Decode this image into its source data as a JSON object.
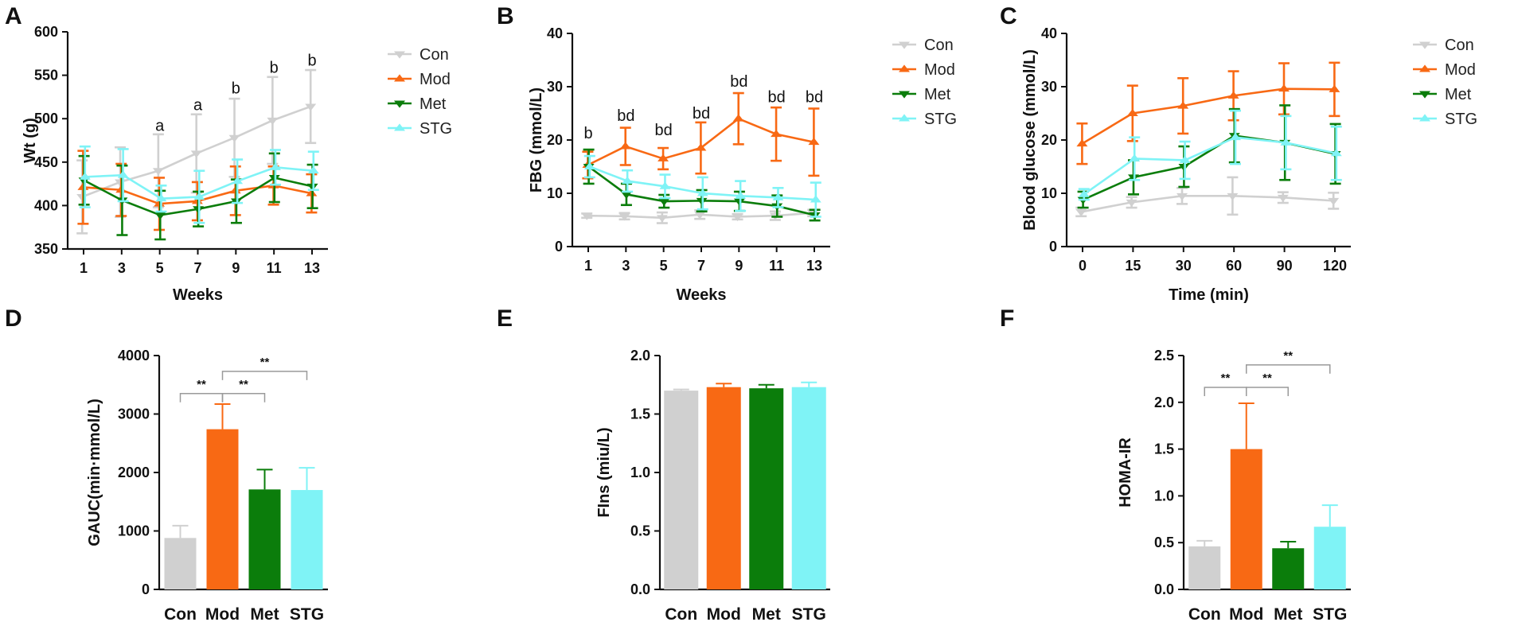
{
  "figure": {
    "colors": {
      "Con": "#d0d0d0",
      "Mod": "#f86914",
      "Met": "#0b7d0b",
      "STG": "#7ff3f6"
    },
    "markers": {
      "Con": "tri-down",
      "Mod": "tri-up",
      "Met": "tri-down",
      "STG": "tri-up"
    },
    "legend_labels": [
      "Con",
      "Mod",
      "Met",
      "STG"
    ]
  },
  "chart_data": [
    {
      "id": "A",
      "letter": "A",
      "type": "line",
      "xlabel": "Weeks",
      "ylabel": "Wt (g)",
      "categories": [
        "1",
        "3",
        "5",
        "7",
        "9",
        "11",
        "13"
      ],
      "ylim": [
        350,
        600
      ],
      "yticks": [
        "350",
        "400",
        "450",
        "500",
        "550",
        "600"
      ],
      "legend": "top-right",
      "series": [
        {
          "name": "Con",
          "values": [
            410,
            427,
            440,
            460,
            478,
            498,
            514
          ],
          "err": [
            42,
            40,
            42,
            45,
            45,
            50,
            42
          ]
        },
        {
          "name": "Mod",
          "values": [
            421,
            418,
            402,
            405,
            417,
            423,
            414
          ],
          "err": [
            42,
            30,
            30,
            22,
            28,
            22,
            22
          ]
        },
        {
          "name": "Met",
          "values": [
            429,
            406,
            389,
            396,
            405,
            432,
            422
          ],
          "err": [
            28,
            40,
            28,
            20,
            25,
            28,
            25
          ]
        },
        {
          "name": "STG",
          "values": [
            433,
            435,
            408,
            410,
            428,
            444,
            440
          ],
          "err": [
            35,
            30,
            15,
            30,
            25,
            20,
            22
          ]
        }
      ],
      "annotations": [
        {
          "text": "a",
          "x": "5",
          "y": 486
        },
        {
          "text": "a",
          "x": "7",
          "y": 510
        },
        {
          "text": "b",
          "x": "9",
          "y": 529
        },
        {
          "text": "b",
          "x": "11",
          "y": 553
        },
        {
          "text": "b",
          "x": "13",
          "y": 561
        }
      ]
    },
    {
      "id": "B",
      "letter": "B",
      "type": "line",
      "xlabel": "Weeks",
      "ylabel": "FBG (mmol/L)",
      "categories": [
        "1",
        "3",
        "5",
        "7",
        "9",
        "11",
        "13"
      ],
      "ylim": [
        0,
        40
      ],
      "yticks": [
        "0",
        "10",
        "20",
        "30",
        "40"
      ],
      "legend": "top-right",
      "series": [
        {
          "name": "Con",
          "values": [
            5.8,
            5.7,
            5.4,
            6.0,
            5.6,
            5.8,
            6.3
          ],
          "err": [
            0.4,
            0.6,
            1.0,
            0.8,
            0.5,
            0.8,
            0.6
          ]
        },
        {
          "name": "Mod",
          "values": [
            15.3,
            18.8,
            16.5,
            18.5,
            24.0,
            21.1,
            19.6
          ],
          "err": [
            2.5,
            3.5,
            2.0,
            4.8,
            4.8,
            5.0,
            6.3
          ]
        },
        {
          "name": "Met",
          "values": [
            15.0,
            9.8,
            8.5,
            8.6,
            8.5,
            7.6,
            5.9
          ],
          "err": [
            3.2,
            2.0,
            1.2,
            2.0,
            1.8,
            2.0,
            1.0
          ]
        },
        {
          "name": "STG",
          "values": [
            15.0,
            12.3,
            11.3,
            10.0,
            9.5,
            9.2,
            8.8
          ],
          "err": [
            2.0,
            2.0,
            2.2,
            3.0,
            2.8,
            1.8,
            3.2
          ]
        }
      ],
      "annotations": [
        {
          "text": "b",
          "x": "1",
          "y": 20.3
        },
        {
          "text": "bd",
          "x": "3",
          "y": 23.6
        },
        {
          "text": "bd",
          "x": "5",
          "y": 20.9
        },
        {
          "text": "bd",
          "x": "7",
          "y": 24.0
        },
        {
          "text": "bd",
          "x": "9",
          "y": 30.0
        },
        {
          "text": "bd",
          "x": "11",
          "y": 27.1
        },
        {
          "text": "bd",
          "x": "13",
          "y": 27.1
        }
      ]
    },
    {
      "id": "C",
      "letter": "C",
      "type": "line",
      "xlabel": "Time (min)",
      "ylabel": "Blood glucose (mmol/L)",
      "categories": [
        "0",
        "15",
        "30",
        "60",
        "90",
        "120"
      ],
      "ylim": [
        0,
        40
      ],
      "yticks": [
        "0",
        "10",
        "20",
        "30",
        "40"
      ],
      "legend": "top-right",
      "series": [
        {
          "name": "Con",
          "values": [
            6.5,
            8.3,
            9.5,
            9.5,
            9.2,
            8.6
          ],
          "err": [
            0.8,
            1.0,
            1.5,
            3.5,
            1.0,
            1.5
          ]
        },
        {
          "name": "Mod",
          "values": [
            19.3,
            25.0,
            26.4,
            28.3,
            29.6,
            29.5
          ],
          "err": [
            3.8,
            5.2,
            5.2,
            4.6,
            4.8,
            5.0
          ]
        },
        {
          "name": "Met",
          "values": [
            8.8,
            13.0,
            15.0,
            20.8,
            19.5,
            17.4
          ],
          "err": [
            1.5,
            3.2,
            3.8,
            5.0,
            7.0,
            5.6
          ]
        },
        {
          "name": "STG",
          "values": [
            9.8,
            16.5,
            16.2,
            20.5,
            19.5,
            17.5
          ],
          "err": [
            1.0,
            4.0,
            3.5,
            5.0,
            5.0,
            5.0
          ]
        }
      ]
    },
    {
      "id": "D",
      "letter": "D",
      "type": "bar",
      "xlabel": "",
      "ylabel": "GAUC(min·mmol/L)",
      "categories": [
        "Con",
        "Mod",
        "Met",
        "STG"
      ],
      "values": [
        880,
        2740,
        1710,
        1700
      ],
      "err": [
        210,
        430,
        340,
        380
      ],
      "ylim": [
        0,
        4000
      ],
      "yticks": [
        "0",
        "1000",
        "2000",
        "3000",
        "4000"
      ],
      "brackets": [
        {
          "from": "Con",
          "to": "Mod",
          "label": "**",
          "y": 3350
        },
        {
          "from": "Mod",
          "to": "Met",
          "label": "**",
          "y": 3350
        },
        {
          "from": "Mod",
          "to": "STG",
          "label": "**",
          "y": 3730
        }
      ]
    },
    {
      "id": "E",
      "letter": "E",
      "type": "bar",
      "xlabel": "",
      "ylabel": "FIns (miu/L)",
      "categories": [
        "Con",
        "Mod",
        "Met",
        "STG"
      ],
      "values": [
        1.7,
        1.73,
        1.72,
        1.73
      ],
      "err": [
        0.01,
        0.03,
        0.03,
        0.04
      ],
      "ylim": [
        0,
        2.0
      ],
      "yticks": [
        "0.0",
        "0.5",
        "1.0",
        "1.5",
        "2.0"
      ]
    },
    {
      "id": "F",
      "letter": "F",
      "type": "bar",
      "xlabel": "",
      "ylabel": "HOMA-IR",
      "categories": [
        "Con",
        "Mod",
        "Met",
        "STG"
      ],
      "values": [
        0.46,
        1.5,
        0.44,
        0.67
      ],
      "err": [
        0.06,
        0.49,
        0.07,
        0.23
      ],
      "ylim": [
        0,
        2.5
      ],
      "yticks": [
        "0.0",
        "0.5",
        "1.0",
        "1.5",
        "2.0",
        "2.5"
      ],
      "brackets": [
        {
          "from": "Con",
          "to": "Mod",
          "label": "**",
          "y": 2.16
        },
        {
          "from": "Mod",
          "to": "Met",
          "label": "**",
          "y": 2.16
        },
        {
          "from": "Mod",
          "to": "STG",
          "label": "**",
          "y": 2.4
        }
      ]
    }
  ]
}
